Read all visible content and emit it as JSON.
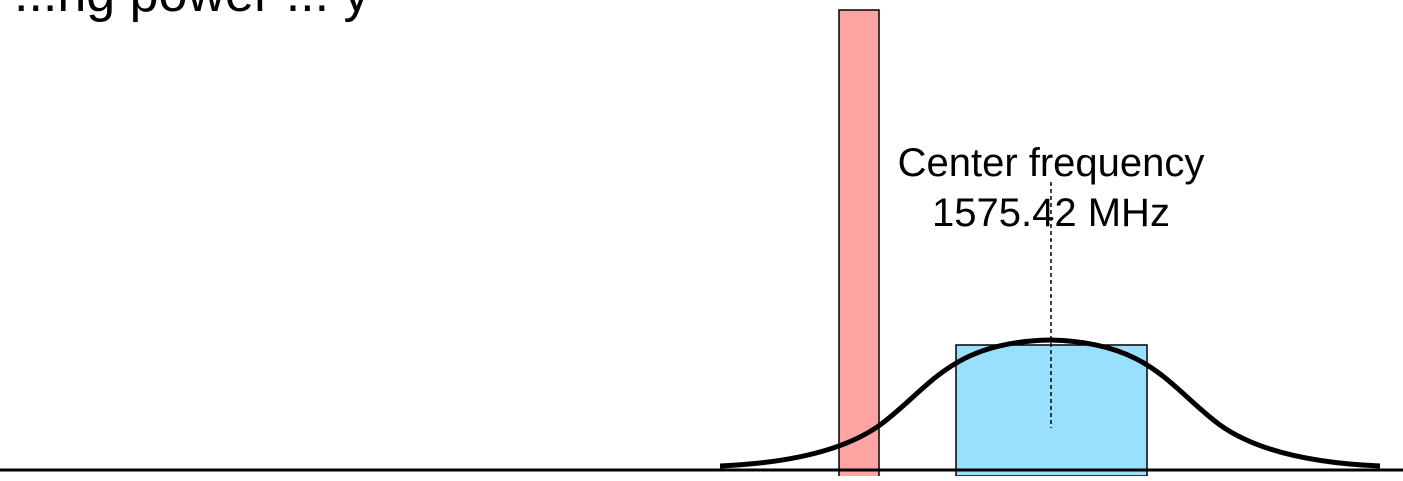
{
  "title_fragment": "...ng power ... y",
  "center_label": {
    "line1": "Center frequency",
    "line2": "1575.42 MHz"
  },
  "colors": {
    "interferer_fill": "#ffa3a3",
    "signal_band_fill": "#99e0ff",
    "curve": "#000000",
    "axis": "#000000",
    "center_line": "#000000"
  }
}
